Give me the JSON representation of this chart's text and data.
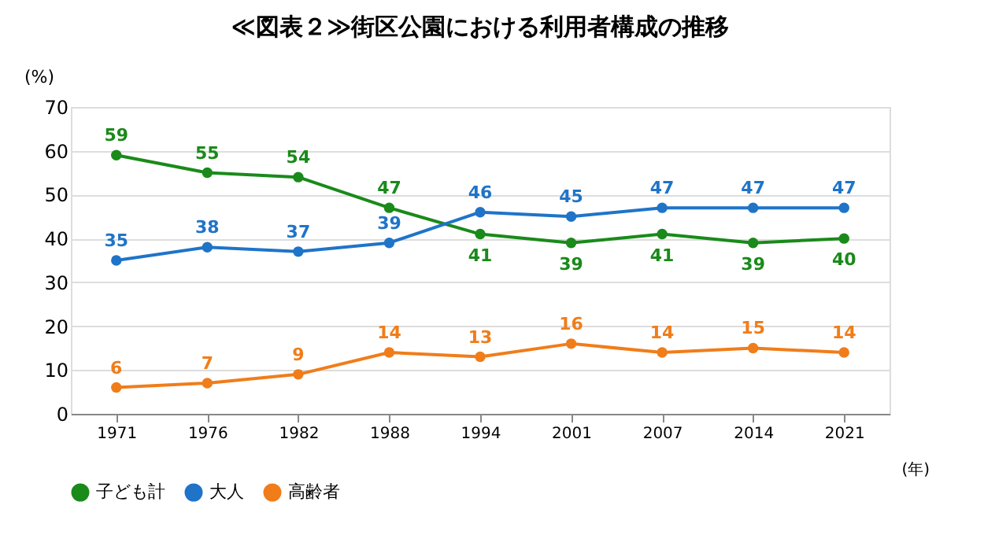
{
  "chart_data": {
    "type": "line",
    "title": "≪図表２≫街区公園における利用者構成の推移",
    "ylabel": "(%)",
    "xlabel": "(年)",
    "categories": [
      "1971",
      "1976",
      "1982",
      "1988",
      "1994",
      "2001",
      "2007",
      "2014",
      "2021"
    ],
    "series": [
      {
        "name": "子ども計",
        "color": "#1a8a1a",
        "values": [
          59,
          55,
          54,
          47,
          41,
          39,
          41,
          39,
          40
        ]
      },
      {
        "name": "大人",
        "color": "#1f74c8",
        "values": [
          35,
          38,
          37,
          39,
          46,
          45,
          47,
          47,
          47
        ]
      },
      {
        "name": "高齢者",
        "color": "#f07d1a",
        "values": [
          6,
          7,
          9,
          14,
          13,
          16,
          14,
          15,
          14
        ]
      }
    ],
    "ylim": [
      0,
      70
    ],
    "yticks": [
      0,
      10,
      20,
      30,
      40,
      50,
      60,
      70
    ],
    "grid": "y",
    "legend": "bottom",
    "marker": "circle",
    "line_style": "solid",
    "data_labels": true
  }
}
